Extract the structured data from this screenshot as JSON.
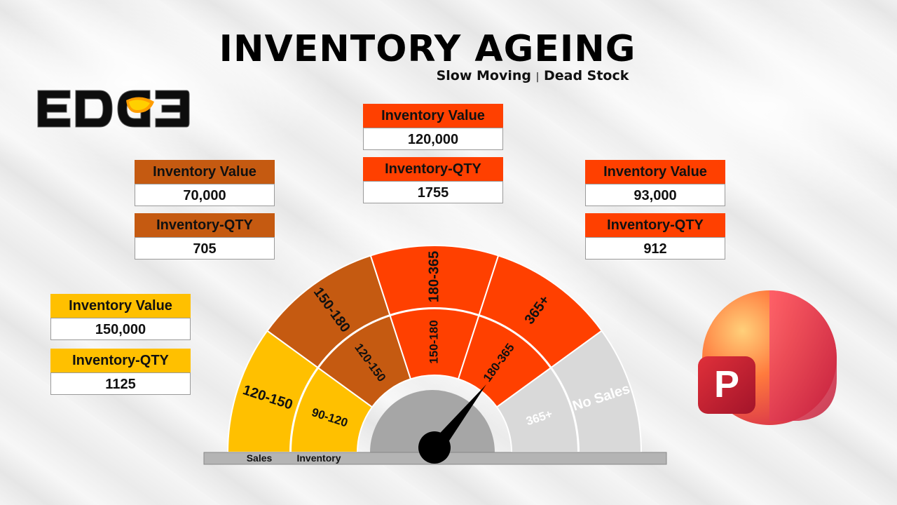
{
  "header": {
    "title": "INVENTORY AGEING",
    "subtitle_left": "Slow Moving",
    "subtitle_sep": "|",
    "subtitle_right": "Dead Stock"
  },
  "logo": {
    "text": "EDGE"
  },
  "cards": [
    {
      "id": "sales-120-150",
      "color": "#ffc000",
      "value_label": "Inventory Value",
      "value": "150,000",
      "qty_label": "Inventory-QTY",
      "qty": "1125"
    },
    {
      "id": "sales-150-180",
      "color": "#c55a11",
      "value_label": "Inventory Value",
      "value": "70,000",
      "qty_label": "Inventory-QTY",
      "qty": "705"
    },
    {
      "id": "sales-180-365",
      "color": "#ff4000",
      "value_label": "Inventory Value",
      "value": "120,000",
      "qty_label": "Inventory-QTY",
      "qty": "1755"
    },
    {
      "id": "sales-365-plus",
      "color": "#ff4000",
      "value_label": "Inventory Value",
      "value": "93,000",
      "qty_label": "Inventory-QTY",
      "qty": "912"
    }
  ],
  "gauge": {
    "outer_ring": [
      {
        "label": "120-150",
        "color": "#ffc000"
      },
      {
        "label": "150-180",
        "color": "#c55a11"
      },
      {
        "label": "180-365",
        "color": "#ff4000"
      },
      {
        "label": "365+",
        "color": "#ff4000"
      },
      {
        "label": "No Sales",
        "color": "#d9d9d9"
      }
    ],
    "inner_ring": [
      {
        "label": "90-120",
        "color": "#ffc000"
      },
      {
        "label": "120-150",
        "color": "#c55a11"
      },
      {
        "label": "150-180",
        "color": "#ff4000"
      },
      {
        "label": "180-365",
        "color": "#ff4000"
      },
      {
        "label": "365+",
        "color": "#d9d9d9"
      }
    ],
    "base_left_label": "Sales",
    "base_right_label": "Inventory"
  },
  "app_icon": {
    "letter": "P"
  }
}
